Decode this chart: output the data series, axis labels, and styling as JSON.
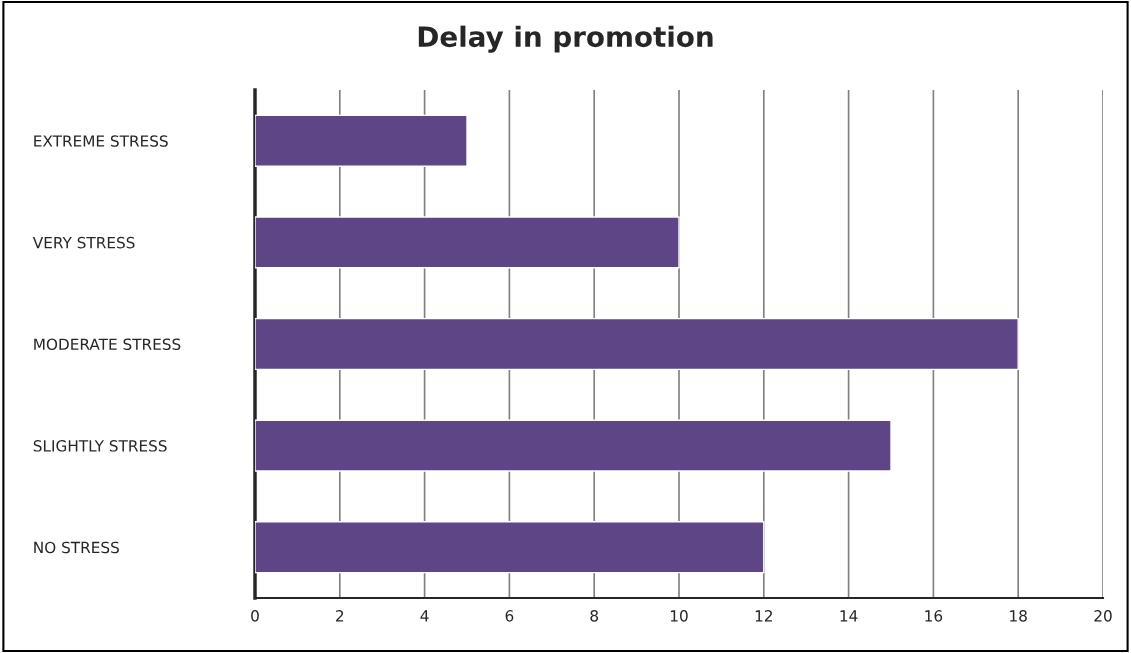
{
  "chart_data": {
    "type": "bar",
    "title": "Delay in promotion",
    "orientation": "horizontal",
    "categories": [
      "EXTREME STRESS",
      "VERY STRESS",
      "MODERATE STRESS",
      "SLIGHTLY STRESS",
      "NO STRESS"
    ],
    "values": [
      5,
      10,
      18,
      15,
      12
    ],
    "color": "#5e4585",
    "xlim": [
      0,
      20
    ],
    "xticks": [
      0,
      2,
      4,
      6,
      8,
      10,
      12,
      14,
      16,
      18,
      20
    ],
    "grid": "x"
  }
}
